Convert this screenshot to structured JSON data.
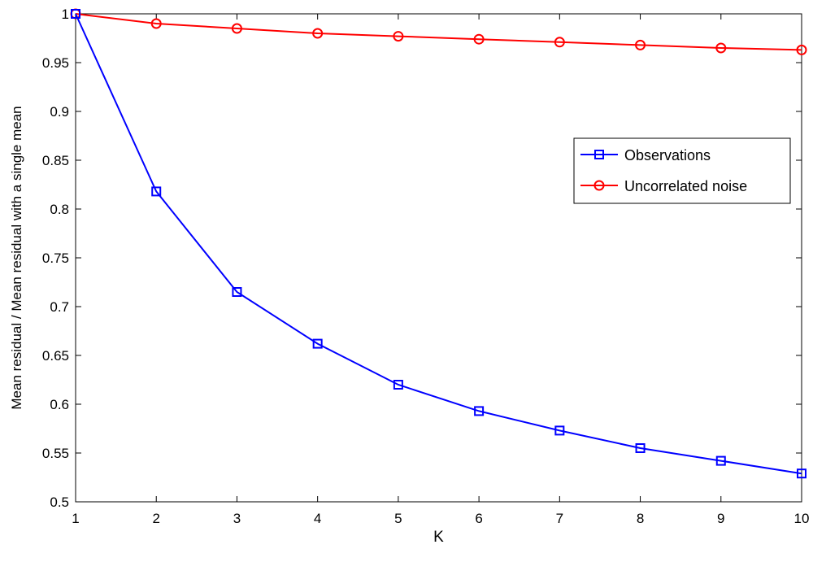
{
  "chart_data": {
    "type": "line",
    "title": "",
    "xlabel": "K",
    "ylabel": "Mean residual / Mean residual with a single mean",
    "xlim": [
      1,
      10
    ],
    "ylim": [
      0.5,
      1
    ],
    "x": [
      1,
      2,
      3,
      4,
      5,
      6,
      7,
      8,
      9,
      10
    ],
    "xticks": [
      1,
      2,
      3,
      4,
      5,
      6,
      7,
      8,
      9,
      10
    ],
    "yticks": [
      0.5,
      0.55,
      0.6,
      0.65,
      0.7,
      0.75,
      0.8,
      0.85,
      0.9,
      0.95,
      1
    ],
    "ytick_labels": [
      "0.5",
      "0.55",
      "0.6",
      "0.65",
      "0.7",
      "0.75",
      "0.8",
      "0.85",
      "0.9",
      "0.95",
      "1"
    ],
    "grid": false,
    "legend_position": "right",
    "series": [
      {
        "name": "Observations",
        "color": "#0000ff",
        "marker": "square",
        "values": [
          1.0,
          0.818,
          0.715,
          0.662,
          0.62,
          0.593,
          0.573,
          0.555,
          0.542,
          0.529
        ]
      },
      {
        "name": "Uncorrelated noise",
        "color": "#ff0000",
        "marker": "circle",
        "values": [
          1.0,
          0.99,
          0.985,
          0.98,
          0.977,
          0.974,
          0.971,
          0.968,
          0.965,
          0.963
        ]
      }
    ]
  }
}
